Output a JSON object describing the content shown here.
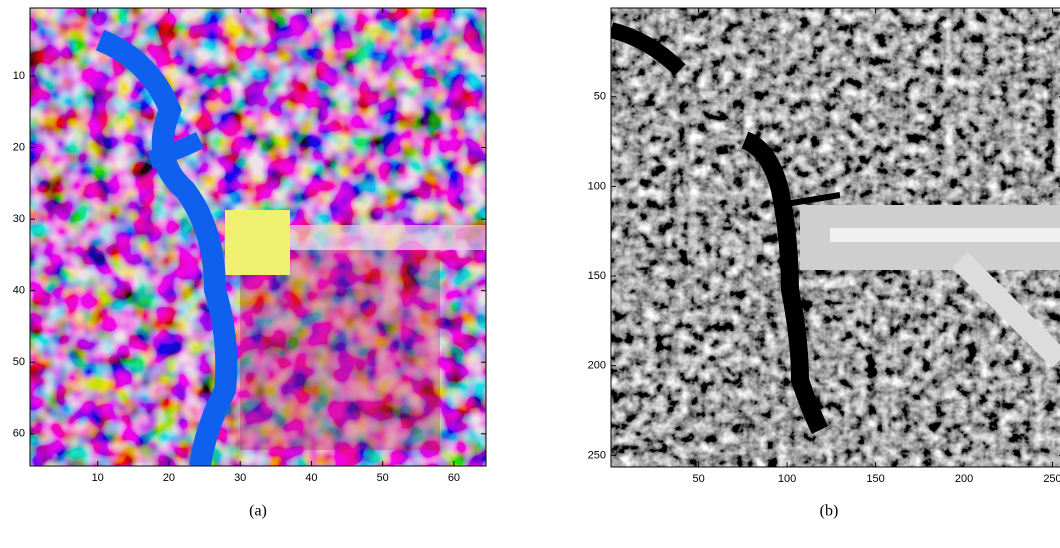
{
  "chart_data": [
    {
      "type": "image",
      "caption": "(a)",
      "xlim": [
        0.5,
        64.5
      ],
      "ylim": [
        0.5,
        64.5
      ],
      "y_direction": "reverse",
      "xticks": [
        10,
        20,
        30,
        40,
        50,
        60
      ],
      "yticks": [
        10,
        20,
        30,
        40,
        50,
        60
      ]
    },
    {
      "type": "image",
      "caption": "(b)",
      "xlim": [
        0.5,
        256.5
      ],
      "ylim": [
        0.5,
        256.5
      ],
      "y_direction": "reverse",
      "xticks": [
        50,
        100,
        150,
        200,
        250
      ],
      "yticks": [
        50,
        100,
        150,
        200,
        250
      ]
    }
  ]
}
